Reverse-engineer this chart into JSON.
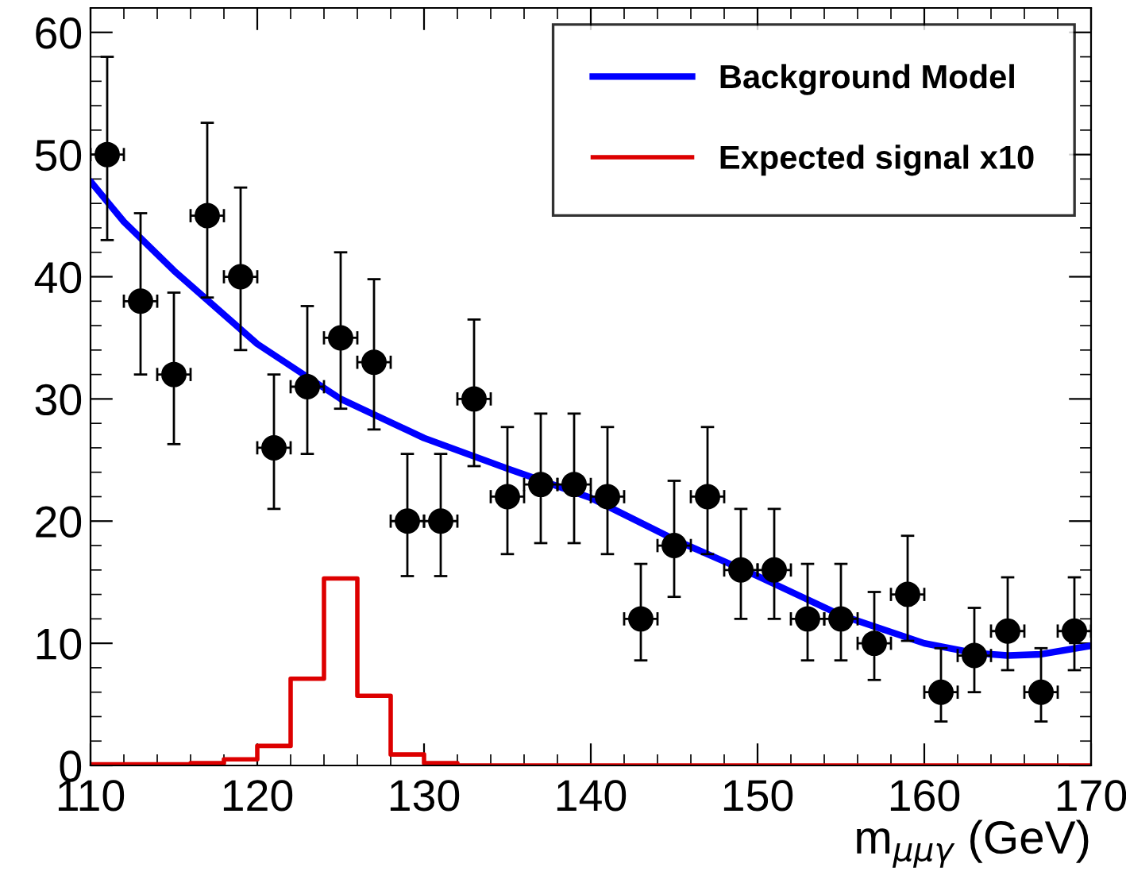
{
  "chart_data": {
    "type": "scatter",
    "xlabel": "m$_{μμγ}$ (GeV)",
    "xlim": [
      110,
      170
    ],
    "xticks": [
      110,
      120,
      130,
      140,
      150,
      160,
      170
    ],
    "ylim": [
      0,
      62
    ],
    "yticks": [
      0,
      10,
      20,
      30,
      40,
      50,
      60
    ],
    "legend": "top right",
    "series": [
      {
        "type": "line",
        "name": "Background Model",
        "color": "#0000ff",
        "marker": "none",
        "x": [
          110,
          112,
          115,
          120,
          125,
          130,
          135,
          140,
          145,
          150,
          155,
          160,
          163,
          165,
          167,
          170
        ],
        "values": [
          47.8,
          44.5,
          40.5,
          34.5,
          30,
          26.8,
          24.3,
          21.9,
          18.5,
          15.5,
          12.3,
          10.0,
          9.2,
          9,
          9.1,
          9.8
        ]
      },
      {
        "type": "step",
        "name": "Expected signal x10",
        "color": "#dd0000",
        "marker": "none",
        "x": [
          110,
          112,
          114,
          116,
          118,
          120,
          122,
          124,
          126,
          128,
          130,
          132,
          134,
          136,
          138,
          140,
          142,
          144,
          146,
          148,
          150,
          152,
          154,
          156,
          158,
          160,
          162,
          164,
          166,
          168,
          170
        ],
        "values": [
          0.1,
          0.1,
          0.1,
          0.2,
          0.5,
          1.6,
          7.1,
          15.3,
          5.7,
          0.9,
          0.2,
          0,
          0,
          0,
          0,
          0,
          0,
          0,
          0,
          0,
          0,
          0,
          0,
          0,
          0,
          0,
          0,
          0,
          0,
          0,
          0
        ]
      },
      {
        "color": "#000000",
        "marker": "circle",
        "x": [
          111,
          113,
          115,
          117,
          119,
          121,
          123,
          125,
          127,
          129,
          131,
          133,
          135,
          137,
          139,
          141,
          143,
          145,
          147,
          149,
          151,
          153,
          155,
          157,
          159,
          161,
          163,
          165,
          167,
          169
        ],
        "values": [
          50,
          38,
          32,
          45,
          40,
          26,
          31,
          35,
          33,
          20,
          20,
          30,
          22,
          23,
          23,
          22,
          12,
          18,
          22,
          16,
          16,
          12,
          12,
          10,
          14,
          6,
          9,
          11,
          6,
          11
        ],
        "errors": [
          [
            43,
            58
          ],
          [
            32,
            45.2
          ],
          [
            26.3,
            38.7
          ],
          [
            38.3,
            52.6
          ],
          [
            34,
            47.3
          ],
          [
            21,
            32
          ],
          [
            25.5,
            37.6
          ],
          [
            29.2,
            42
          ],
          [
            27.5,
            39.8
          ],
          [
            15.5,
            25.5
          ],
          [
            15.5,
            25.5
          ],
          [
            24.5,
            36.5
          ],
          [
            17.3,
            27.7
          ],
          [
            18.2,
            28.8
          ],
          [
            18.2,
            28.8
          ],
          [
            17.3,
            27.7
          ],
          [
            8.6,
            16.5
          ],
          [
            13.8,
            23.3
          ],
          [
            17.3,
            27.7
          ],
          [
            12,
            21
          ],
          [
            12,
            21
          ],
          [
            8.6,
            16.5
          ],
          [
            8.6,
            16.5
          ],
          [
            7,
            14.2
          ],
          [
            10.2,
            18.8
          ],
          [
            3.6,
            9.6
          ],
          [
            6,
            12.9
          ],
          [
            7.8,
            15.4
          ],
          [
            3.6,
            9.6
          ],
          [
            7.8,
            15.4
          ]
        ],
        "xerrors": [
          1,
          1,
          1,
          1,
          1,
          1,
          1,
          1,
          1,
          1,
          1,
          1,
          1,
          1,
          1,
          1,
          1,
          1,
          1,
          1,
          1,
          1,
          1,
          1,
          1,
          1,
          1,
          1,
          1,
          1
        ]
      }
    ]
  }
}
